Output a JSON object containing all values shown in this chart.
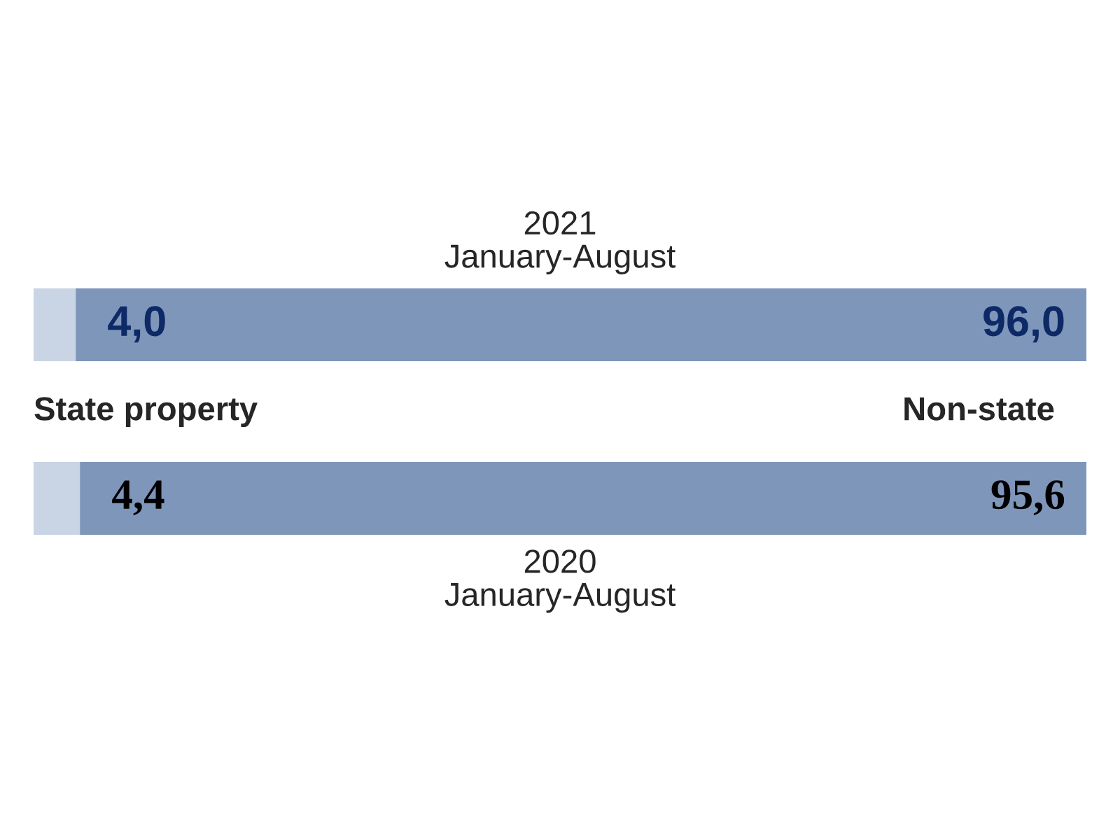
{
  "chart_data": {
    "type": "bar",
    "orientation": "horizontal",
    "stacked": true,
    "categories": [
      "2021\nJanuary-August",
      "2020\nJanuary-August"
    ],
    "series": [
      {
        "name": "State property",
        "color": "#c9d4e4",
        "values": [
          4.0,
          4.4
        ],
        "value_labels": [
          "4,0",
          "4,4"
        ]
      },
      {
        "name": "Non-state",
        "color": "#7f96bb",
        "values": [
          96.0,
          95.6
        ],
        "value_labels": [
          "96,0",
          "95,6"
        ]
      }
    ],
    "xlim": [
      0,
      100
    ],
    "tick_labels": false
  }
}
